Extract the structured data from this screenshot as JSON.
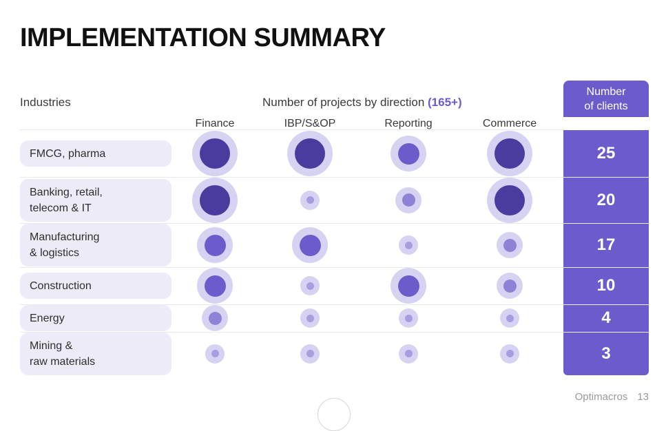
{
  "title": "IMPLEMENTATION SUMMARY",
  "header": {
    "industries_label": "Industries",
    "projects_label": "Number of projects by direction",
    "projects_total": "(165+)",
    "clients_label_line1": "Number",
    "clients_label_line2": "of clients"
  },
  "footer": {
    "brand": "Optimacros",
    "page_number": "13"
  },
  "colors": {
    "accent": "#6c5ccb",
    "bubble_halo": "#d6d2f2",
    "bubble_levels": [
      "#a89de0",
      "#8f82d6",
      "#6c5ccb",
      "#4a3b9f"
    ]
  },
  "chart_data": {
    "type": "bubble-matrix",
    "scale_note": "bubble size is an ordinal level 1 (smallest) to 5 (largest)",
    "directions": [
      "Finance",
      "IBP/S&OP",
      "Reporting",
      "Commerce"
    ],
    "industries": [
      {
        "name": "FMCG, pharma",
        "levels": [
          5,
          5,
          4,
          5
        ],
        "clients": "25"
      },
      {
        "name": "Banking, retail,\ntelecom & IT",
        "levels": [
          5,
          1,
          2,
          5
        ],
        "clients": "20"
      },
      {
        "name": "Manufacturing\n& logistics",
        "levels": [
          4,
          4,
          1,
          2
        ],
        "clients": "17"
      },
      {
        "name": "Construction",
        "levels": [
          4,
          1,
          4,
          2
        ],
        "clients": "10"
      },
      {
        "name": "Energy",
        "levels": [
          2,
          1,
          1,
          1
        ],
        "clients": "4"
      },
      {
        "name": "Mining &\nraw materials",
        "levels": [
          1,
          1,
          1,
          1
        ],
        "clients": "3"
      }
    ]
  }
}
